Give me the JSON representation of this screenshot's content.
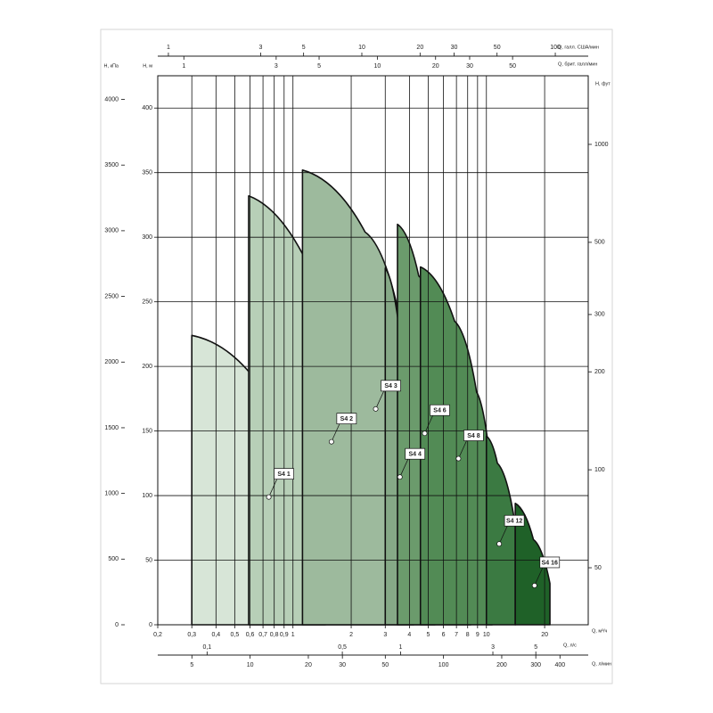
{
  "chart_data": {
    "type": "area",
    "axes": [
      {
        "position": "bottom",
        "label": "Q, м³/ч",
        "log": true,
        "grid": true,
        "lim": [
          0.2,
          33.6
        ],
        "ticks": [
          {
            "value": 0.2,
            "label": "0,2"
          },
          {
            "value": 0.3,
            "label": "0,3"
          },
          {
            "value": 0.4,
            "label": "0,4"
          },
          {
            "value": 0.5,
            "label": "0,5"
          },
          {
            "value": 0.6,
            "label": "0,6"
          },
          {
            "value": 0.7,
            "label": "0,7"
          },
          {
            "value": 0.8,
            "label": "0,8"
          },
          {
            "value": 0.9,
            "label": "0,9"
          },
          1,
          2,
          3,
          4,
          5,
          6,
          7,
          8,
          9,
          10,
          20
        ]
      },
      {
        "position": "bottom-2",
        "label": "Q, л/с",
        "log": true,
        "lim": [
          0.0556,
          9.33
        ],
        "ticks": [
          {
            "value": 0.1,
            "label": "0,1"
          },
          {
            "value": 0.5,
            "label": "0,5"
          },
          1,
          3,
          5
        ]
      },
      {
        "position": "bottom-3",
        "label": "Q, л/мин",
        "log": true,
        "lim": [
          3.33,
          560
        ],
        "ticks": [
          5,
          10,
          20,
          30,
          50,
          100,
          200,
          300,
          400
        ]
      },
      {
        "position": "top",
        "label": "Q, галл. США/мин",
        "log": true,
        "lim": [
          0.881,
          148
        ],
        "ticks": [
          1,
          3,
          5,
          10,
          20,
          30,
          50,
          100
        ]
      },
      {
        "position": "top-2",
        "label": "Q, брит. галл/мин",
        "log": true,
        "lim": [
          0.733,
          123
        ],
        "ticks": [
          1,
          3,
          5,
          10,
          20,
          30,
          50
        ]
      },
      {
        "position": "left",
        "label": "H, м",
        "grid": true,
        "lim": [
          0,
          425
        ],
        "ticks": [
          0,
          50,
          100,
          150,
          200,
          250,
          300,
          350,
          400
        ]
      },
      {
        "position": "left-2",
        "label": "H, кПа",
        "lim": [
          0,
          4180
        ],
        "ticks": [
          0,
          500,
          1000,
          1500,
          2000,
          2500,
          3000,
          3500,
          4000
        ]
      },
      {
        "position": "right",
        "label": "H, фут",
        "log": true,
        "lim": [
          33.4,
          1625
        ],
        "ticks": [
          50,
          100,
          200,
          300,
          500,
          1000
        ]
      }
    ],
    "series": [
      {
        "name": "S4 1",
        "color": "#d7e5d7",
        "x": [
          0.3,
          0.66,
          1.01,
          1.47
        ],
        "values": [
          224,
          187,
          132,
          82
        ]
      },
      {
        "name": "S4 2",
        "color": "#b7cfb7",
        "x": [
          0.59,
          1.39,
          2.13,
          3
        ],
        "values": [
          332,
          256,
          201,
          140
        ]
      },
      {
        "name": "S4 3",
        "color": "#9dba9d",
        "x": [
          1.12,
          2.36,
          3.6,
          5.42
        ],
        "values": [
          352,
          304,
          235,
          125
        ]
      },
      {
        "name": "S4 4",
        "color": "#86a987",
        "x": [
          3,
          3.6,
          4.2
        ],
        "values": [
          276,
          220,
          149
        ]
      },
      {
        "name": "S4 6",
        "color": "#6b9b6c",
        "x": [
          3.47,
          4.47,
          6.1,
          8.29
        ],
        "values": [
          310,
          270,
          208,
          125
        ]
      },
      {
        "name": "S4 8",
        "color": "#528b55",
        "x": [
          4.56,
          6.85,
          8.9,
          10.7
        ],
        "values": [
          277,
          235,
          180,
          111
        ]
      },
      {
        "name": "S4 12",
        "color": "#3b7a42",
        "x": [
          10,
          11.4,
          14.1
        ],
        "values": [
          146,
          125,
          77
        ]
      },
      {
        "name": "S4 16",
        "color": "#1f6128",
        "x": [
          14.1,
          17.5,
          21.3
        ],
        "values": [
          94,
          66,
          32
        ]
      }
    ]
  }
}
